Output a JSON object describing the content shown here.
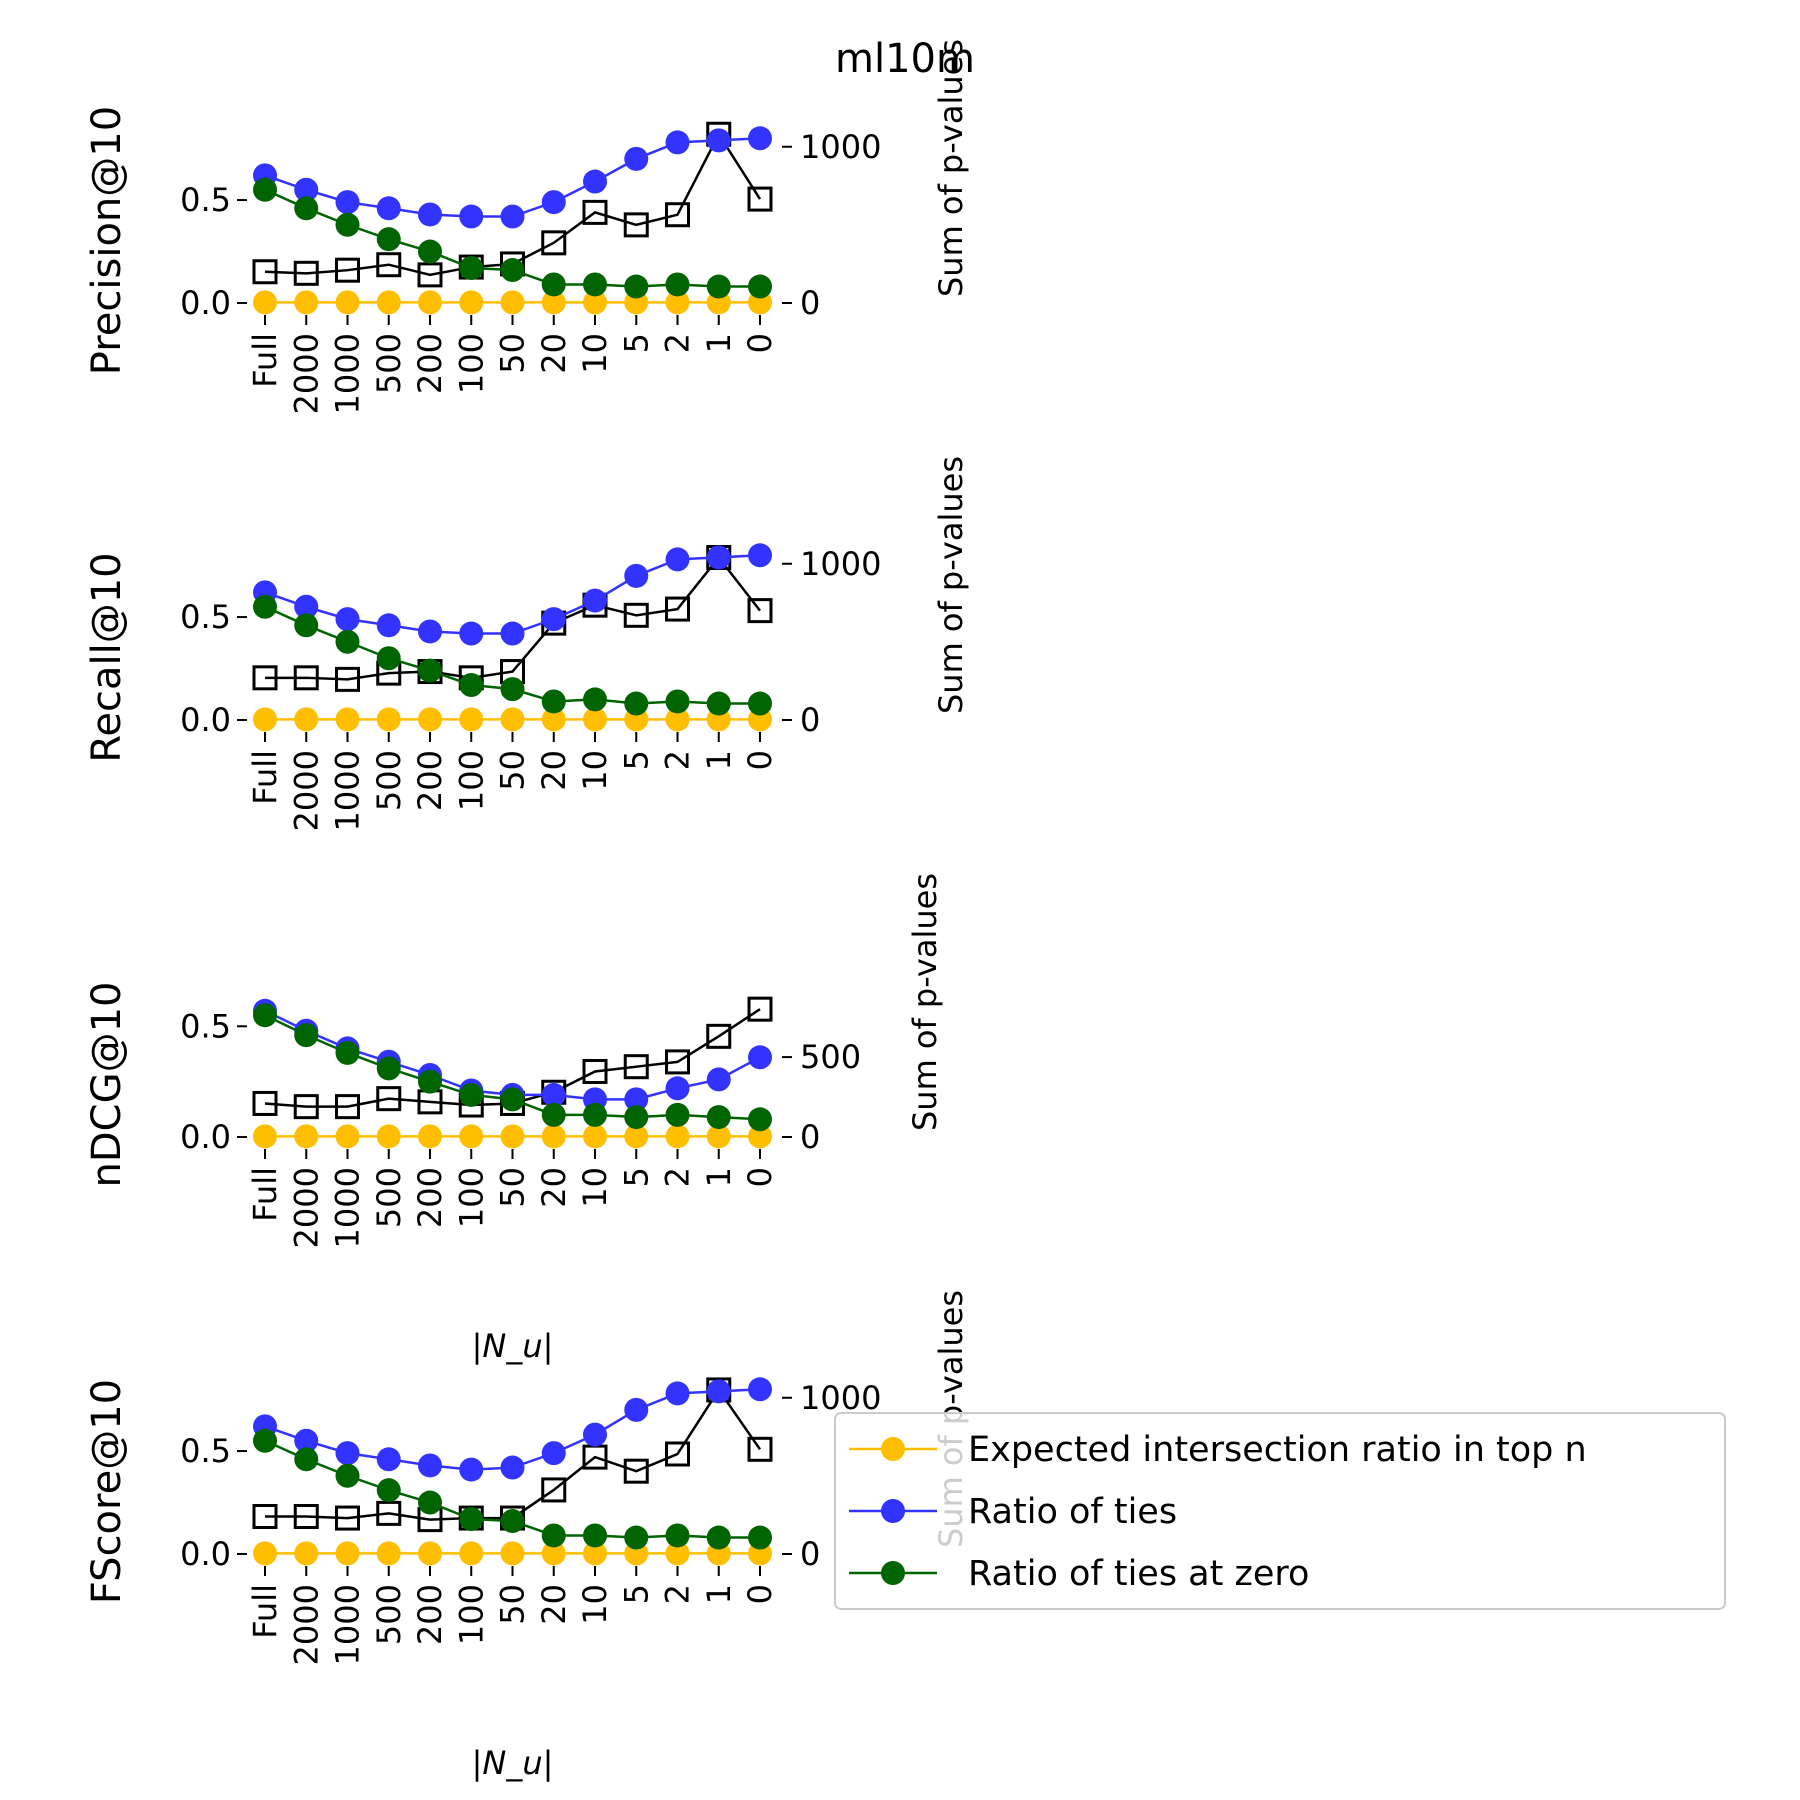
{
  "chart_data": {
    "type": "line",
    "title": "ml10m",
    "categories": [
      "Full",
      "2000",
      "1000",
      "500",
      "200",
      "100",
      "50",
      "20",
      "10",
      "5",
      "2",
      "1",
      "0"
    ],
    "legend": {
      "placement": "lower-right",
      "entries": [
        {
          "label": "Expected intersection ratio in top n",
          "color": "#ffbf00"
        },
        {
          "label": "Ratio of ties",
          "color": "#3333ff"
        },
        {
          "label": "Ratio of ties at zero",
          "color": "#006400"
        }
      ]
    },
    "colors": {
      "expected": "#ffbf00",
      "ties": "#3333ff",
      "ties_zero": "#006400",
      "pvalues": "#000000"
    },
    "panels": [
      {
        "ylabel": "Precision@10",
        "y2label": "Sum of p-values",
        "xlabel": "",
        "ylim": [
          0,
          0.85
        ],
        "yticks": [
          "0.0",
          "0.5"
        ],
        "y2lim": [
          0,
          1120
        ],
        "y2ticks": [
          0,
          1000
        ],
        "series": [
          {
            "name": "Expected intersection ratio in top n",
            "axis": "left",
            "values": [
              0.003,
              0.003,
              0.003,
              0.003,
              0.003,
              0.003,
              0.003,
              0.003,
              0.003,
              0.003,
              0.003,
              0.003,
              0.003
            ]
          },
          {
            "name": "Ratio of ties",
            "axis": "left",
            "values": [
              0.62,
              0.55,
              0.49,
              0.46,
              0.43,
              0.42,
              0.42,
              0.49,
              0.59,
              0.7,
              0.78,
              0.79,
              0.8
            ]
          },
          {
            "name": "Ratio of ties at zero",
            "axis": "left",
            "values": [
              0.55,
              0.46,
              0.38,
              0.31,
              0.25,
              0.17,
              0.16,
              0.09,
              0.09,
              0.08,
              0.09,
              0.08,
              0.08
            ]
          },
          {
            "name": "Sum of p-values",
            "axis": "right",
            "values": [
              200,
              190,
              210,
              245,
              180,
              230,
              250,
              385,
              580,
              500,
              565,
              1080,
              665
            ]
          }
        ]
      },
      {
        "ylabel": "Recall@10",
        "y2label": "Sum of p-values",
        "xlabel": "",
        "ylim": [
          0,
          0.85
        ],
        "yticks": [
          "0.0",
          "0.5"
        ],
        "y2lim": [
          0,
          1120
        ],
        "y2ticks": [
          0,
          1000
        ],
        "series": [
          {
            "name": "Expected intersection ratio in top n",
            "axis": "left",
            "values": [
              0.003,
              0.003,
              0.003,
              0.003,
              0.003,
              0.003,
              0.003,
              0.003,
              0.003,
              0.003,
              0.003,
              0.003,
              0.003
            ]
          },
          {
            "name": "Ratio of ties",
            "axis": "left",
            "values": [
              0.62,
              0.55,
              0.49,
              0.46,
              0.43,
              0.42,
              0.42,
              0.49,
              0.58,
              0.7,
              0.78,
              0.79,
              0.8
            ]
          },
          {
            "name": "Ratio of ties at zero",
            "axis": "left",
            "values": [
              0.55,
              0.46,
              0.38,
              0.3,
              0.24,
              0.17,
              0.15,
              0.09,
              0.1,
              0.08,
              0.09,
              0.08,
              0.08
            ]
          },
          {
            "name": "Sum of p-values",
            "axis": "right",
            "values": [
              270,
              270,
              260,
              300,
              310,
              270,
              310,
              620,
              735,
              670,
              710,
              1040,
              700
            ]
          }
        ]
      },
      {
        "ylabel": "nDCG@10",
        "y2label": "Sum of p-values",
        "xlabel": "|N_u|",
        "ylim": [
          0,
          0.7
        ],
        "yticks": [
          "0.0",
          "0.5"
        ],
        "y2lim": [
          0,
          970
        ],
        "y2ticks": [
          0,
          500
        ],
        "series": [
          {
            "name": "Expected intersection ratio in top n",
            "axis": "left",
            "values": [
              0.003,
              0.003,
              0.003,
              0.003,
              0.003,
              0.003,
              0.003,
              0.003,
              0.003,
              0.003,
              0.003,
              0.003,
              0.003
            ]
          },
          {
            "name": "Ratio of ties",
            "axis": "left",
            "values": [
              0.57,
              0.48,
              0.4,
              0.34,
              0.28,
              0.21,
              0.19,
              0.19,
              0.17,
              0.17,
              0.22,
              0.26,
              0.36
            ]
          },
          {
            "name": "Ratio of ties at zero",
            "axis": "left",
            "values": [
              0.55,
              0.46,
              0.38,
              0.31,
              0.25,
              0.19,
              0.17,
              0.1,
              0.1,
              0.09,
              0.1,
              0.09,
              0.08
            ]
          },
          {
            "name": "Sum of p-values",
            "axis": "right",
            "values": [
              210,
              190,
              190,
              240,
              220,
              200,
              210,
              280,
              410,
              440,
              470,
              630,
              800
            ]
          }
        ]
      },
      {
        "ylabel": "FScore@10",
        "y2label": "Sum of p-values",
        "xlabel": "|N_u|",
        "ylim": [
          0,
          0.85
        ],
        "yticks": [
          "0.0",
          "0.5"
        ],
        "y2lim": [
          0,
          1120
        ],
        "y2ticks": [
          0,
          1000
        ],
        "series": [
          {
            "name": "Expected intersection ratio in top n",
            "axis": "left",
            "values": [
              0.003,
              0.003,
              0.003,
              0.003,
              0.003,
              0.003,
              0.003,
              0.003,
              0.003,
              0.003,
              0.003,
              0.003,
              0.003
            ]
          },
          {
            "name": "Ratio of ties",
            "axis": "left",
            "values": [
              0.62,
              0.55,
              0.49,
              0.46,
              0.43,
              0.41,
              0.42,
              0.49,
              0.58,
              0.7,
              0.78,
              0.79,
              0.8
            ]
          },
          {
            "name": "Ratio of ties at zero",
            "axis": "left",
            "values": [
              0.55,
              0.46,
              0.38,
              0.31,
              0.25,
              0.17,
              0.16,
              0.09,
              0.09,
              0.08,
              0.09,
              0.08,
              0.08
            ]
          },
          {
            "name": "Sum of p-values",
            "axis": "right",
            "values": [
              240,
              240,
              230,
              260,
              220,
              230,
              230,
              410,
              620,
              530,
              640,
              1050,
              670
            ]
          }
        ]
      }
    ]
  }
}
